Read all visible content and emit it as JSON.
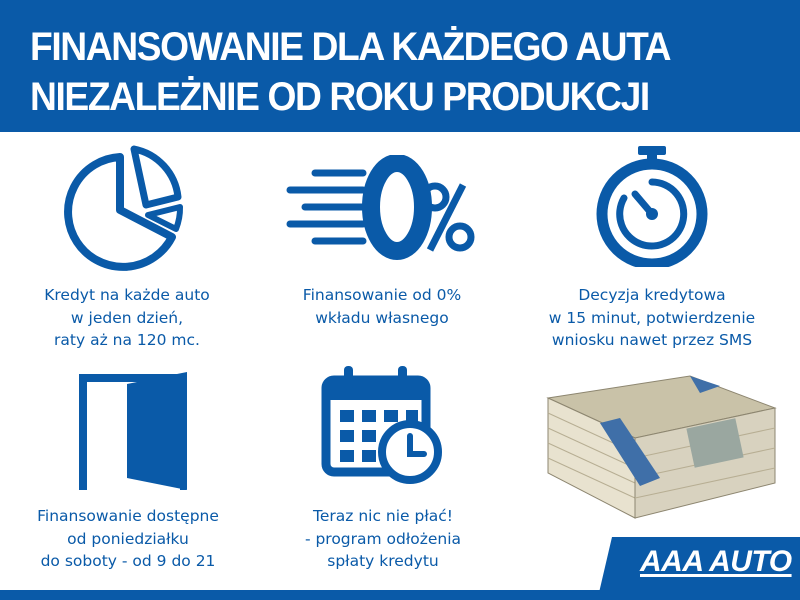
{
  "header": {
    "title_line1": "FINANSOWANIE DLA KAŻDEGO AUTA",
    "title_line2": "NIEZALEŻNIE OD ROKU PRODUKCJI"
  },
  "features": [
    {
      "icon": "pie-chart-icon",
      "lines": [
        "Kredyt na każde auto",
        "w jeden dzień,",
        "raty aż na 120 mc."
      ]
    },
    {
      "icon": "zero-percent-icon",
      "lines": [
        "Finansowanie od 0%",
        "wkładu własnego"
      ]
    },
    {
      "icon": "stopwatch-icon",
      "lines": [
        "Decyzja kredytowa",
        "w 15 minut, potwierdzenie",
        "wniosku nawet przez SMS"
      ]
    },
    {
      "icon": "door-icon",
      "lines": [
        "Finansowanie dostępne",
        "od poniedziałku",
        "do soboty - od 9 do 21"
      ]
    },
    {
      "icon": "calendar-clock-icon",
      "lines": [
        "Teraz nic nie płać!",
        "- program odłożenia",
        "spłaty kredytu"
      ]
    },
    {
      "icon": "money-stack-icon",
      "lines": []
    }
  ],
  "logo": {
    "text": "AAA AUTO"
  },
  "colors": {
    "brand_blue": "#0a5aa8",
    "background": "#ffffff"
  }
}
